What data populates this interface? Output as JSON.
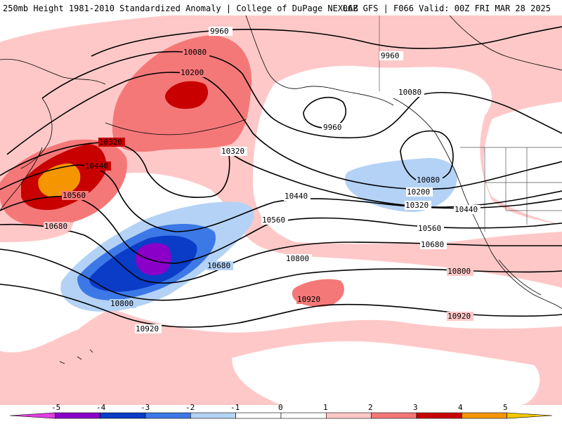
{
  "header": {
    "title": "250mb Height 1981-2010 Standardized Anomaly | College of DuPage NEXLAB",
    "run_info": "06Z GFS | F066 Valid: 00Z FRI MAR 28 2025"
  },
  "contours": {
    "c9960": "9960",
    "c10080": "10080",
    "c10200": "10200",
    "c10320": "10320",
    "c10440": "10440",
    "c10560": "10560",
    "c10680": "10680",
    "c10800": "10800",
    "c10920": "10920"
  },
  "legend": {
    "ticks": [
      "-5",
      "-4",
      "-3",
      "-2",
      "-1",
      "0",
      "1",
      "2",
      "3",
      "4",
      "5"
    ],
    "colors": [
      "#e040e0",
      "#8a00c8",
      "#0a3cc8",
      "#3c78e6",
      "#b4d2f5",
      "#ffffff",
      "#ffffff",
      "#ffc8c8",
      "#f57878",
      "#c80000",
      "#f59600",
      "#f5c800"
    ]
  },
  "colors": {
    "pos1": "#ffc8c8",
    "pos2": "#f57878",
    "pos3": "#c80000",
    "pos4": "#f59600",
    "neg1": "#b4d2f5",
    "neg2": "#3c78e6",
    "neg3": "#0a3cc8",
    "neg4": "#8a00c8",
    "coast": "#000000",
    "border": "#555555"
  }
}
